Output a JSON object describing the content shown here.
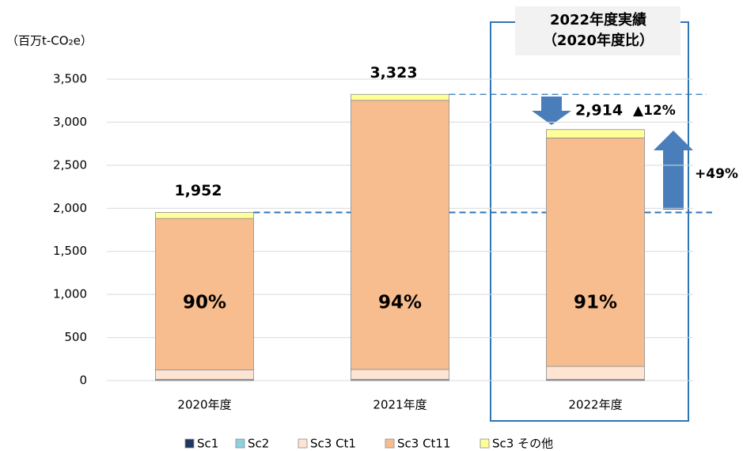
{
  "chart_data": {
    "type": "stacked_bar",
    "y_axis_label": "（百万t-CO₂e）",
    "categories": [
      "2020年度",
      "2021年度",
      "2022年度"
    ],
    "series": [
      {
        "name": "Sc1",
        "color": "#1f3864",
        "values": [
          5,
          5,
          5
        ]
      },
      {
        "name": "Sc2",
        "color": "#8ecfe0",
        "values": [
          10,
          10,
          10
        ]
      },
      {
        "name": "Sc3 Ct1",
        "color": "#fde4d3",
        "values": [
          110,
          115,
          150
        ]
      },
      {
        "name": "Sc3 Ct11",
        "color": "#f8bd8f",
        "values": [
          1757,
          3124,
          2652
        ]
      },
      {
        "name": "Sc3 その他",
        "color": "#ffff99",
        "values": [
          70,
          69,
          97
        ]
      }
    ],
    "totals": {
      "values": [
        1952,
        3323,
        2914
      ],
      "value_labels": [
        "1,952",
        "3,323",
        "2,914"
      ]
    },
    "share": {
      "values": [
        90,
        94,
        91
      ],
      "value_labels": [
        "90%",
        "94%",
        "91%"
      ]
    },
    "annotations": {
      "box_title_1": "2022年度実績",
      "box_title_2": "（2020年度比）",
      "vs_2021": "▲12%",
      "vs_2020": "+49%"
    },
    "ylim": [
      0,
      3500
    ],
    "yticks": [
      0,
      500,
      {
        "value": 1000,
        "label": "1,000"
      },
      {
        "value": 1500,
        "label": "1,500"
      },
      {
        "value": 2000,
        "label": "2,000"
      },
      {
        "value": 2500,
        "label": "2,500"
      },
      {
        "value": 3000,
        "label": "3,000"
      },
      {
        "value": 3500,
        "label": "3,500"
      }
    ],
    "grid": true
  }
}
